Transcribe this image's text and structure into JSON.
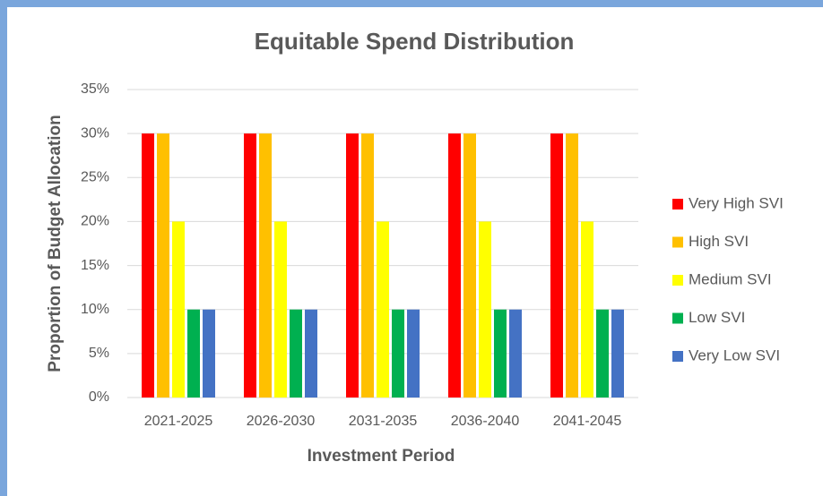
{
  "chart_data": {
    "type": "bar",
    "title": "Equitable Spend Distribution",
    "x_label": "Investment Period",
    "y_label": "Proportion of Budget Allocation",
    "categories": [
      "2021-2025",
      "2026-2030",
      "2031-2035",
      "2036-2040",
      "2041-2045"
    ],
    "series": [
      {
        "name": "Very High SVI",
        "color": "#ff0000",
        "values": [
          30,
          30,
          30,
          30,
          30
        ]
      },
      {
        "name": "High SVI",
        "color": "#ffc000",
        "values": [
          30,
          30,
          30,
          30,
          30
        ]
      },
      {
        "name": "Medium SVI",
        "color": "#ffff00",
        "values": [
          20,
          20,
          20,
          20,
          20
        ]
      },
      {
        "name": "Low SVI",
        "color": "#00b050",
        "values": [
          10,
          10,
          10,
          10,
          10
        ]
      },
      {
        "name": "Very Low SVI",
        "color": "#4472c4",
        "values": [
          10,
          10,
          10,
          10,
          10
        ]
      }
    ],
    "ylim": [
      0,
      35
    ],
    "yticks": [
      {
        "value": 0,
        "label": "0%"
      },
      {
        "value": 5,
        "label": "5%"
      },
      {
        "value": 10,
        "label": "10%"
      },
      {
        "value": 15,
        "label": "15%"
      },
      {
        "value": 20,
        "label": "20%"
      },
      {
        "value": 25,
        "label": "25%"
      },
      {
        "value": 30,
        "label": "30%"
      },
      {
        "value": 35,
        "label": "35%"
      }
    ],
    "grid": true,
    "legend": "right"
  }
}
